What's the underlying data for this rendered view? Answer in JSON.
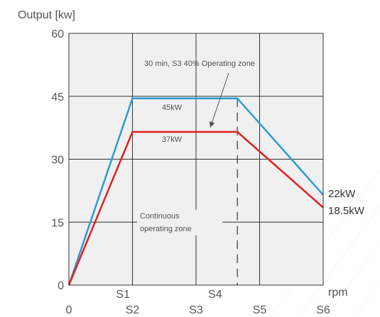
{
  "chart_data": {
    "type": "line",
    "ylabel": "Output [kw]",
    "xlabel": "rpm",
    "ylim": [
      0,
      60
    ],
    "yticks": [
      0,
      15,
      30,
      45,
      60
    ],
    "xlim": [
      0,
      4
    ],
    "x_tick_labels_bottom": [
      {
        "label": "0",
        "x": 0
      },
      {
        "label": "S2",
        "x": 1
      },
      {
        "label": "S3",
        "x": 2
      },
      {
        "label": "S5",
        "x": 3
      },
      {
        "label": "S6",
        "x": 4
      }
    ],
    "x_tick_labels_upper": [
      {
        "label": "S1",
        "x": 0.85
      },
      {
        "label": "S4",
        "x": 2.3
      }
    ],
    "series": [
      {
        "name": "45kW",
        "color": "#2b9bd4",
        "points": [
          [
            0,
            0
          ],
          [
            1,
            44.5
          ],
          [
            2.65,
            44.5
          ],
          [
            4,
            21.5
          ]
        ],
        "end_label": "22kW"
      },
      {
        "name": "37kW",
        "color": "#e02020",
        "points": [
          [
            0,
            0
          ],
          [
            1,
            36.5
          ],
          [
            2.65,
            36.5
          ],
          [
            4,
            18.5
          ]
        ],
        "end_label": "18.5kW"
      }
    ],
    "annotations": {
      "s3_zone": "30 min, S3 40% Operating zone",
      "continuous_line1": "Continuous",
      "continuous_line2": "operating zone",
      "label_45": "45kW",
      "label_37": "37kW"
    },
    "dashed_x": 2.65,
    "grid": true
  }
}
